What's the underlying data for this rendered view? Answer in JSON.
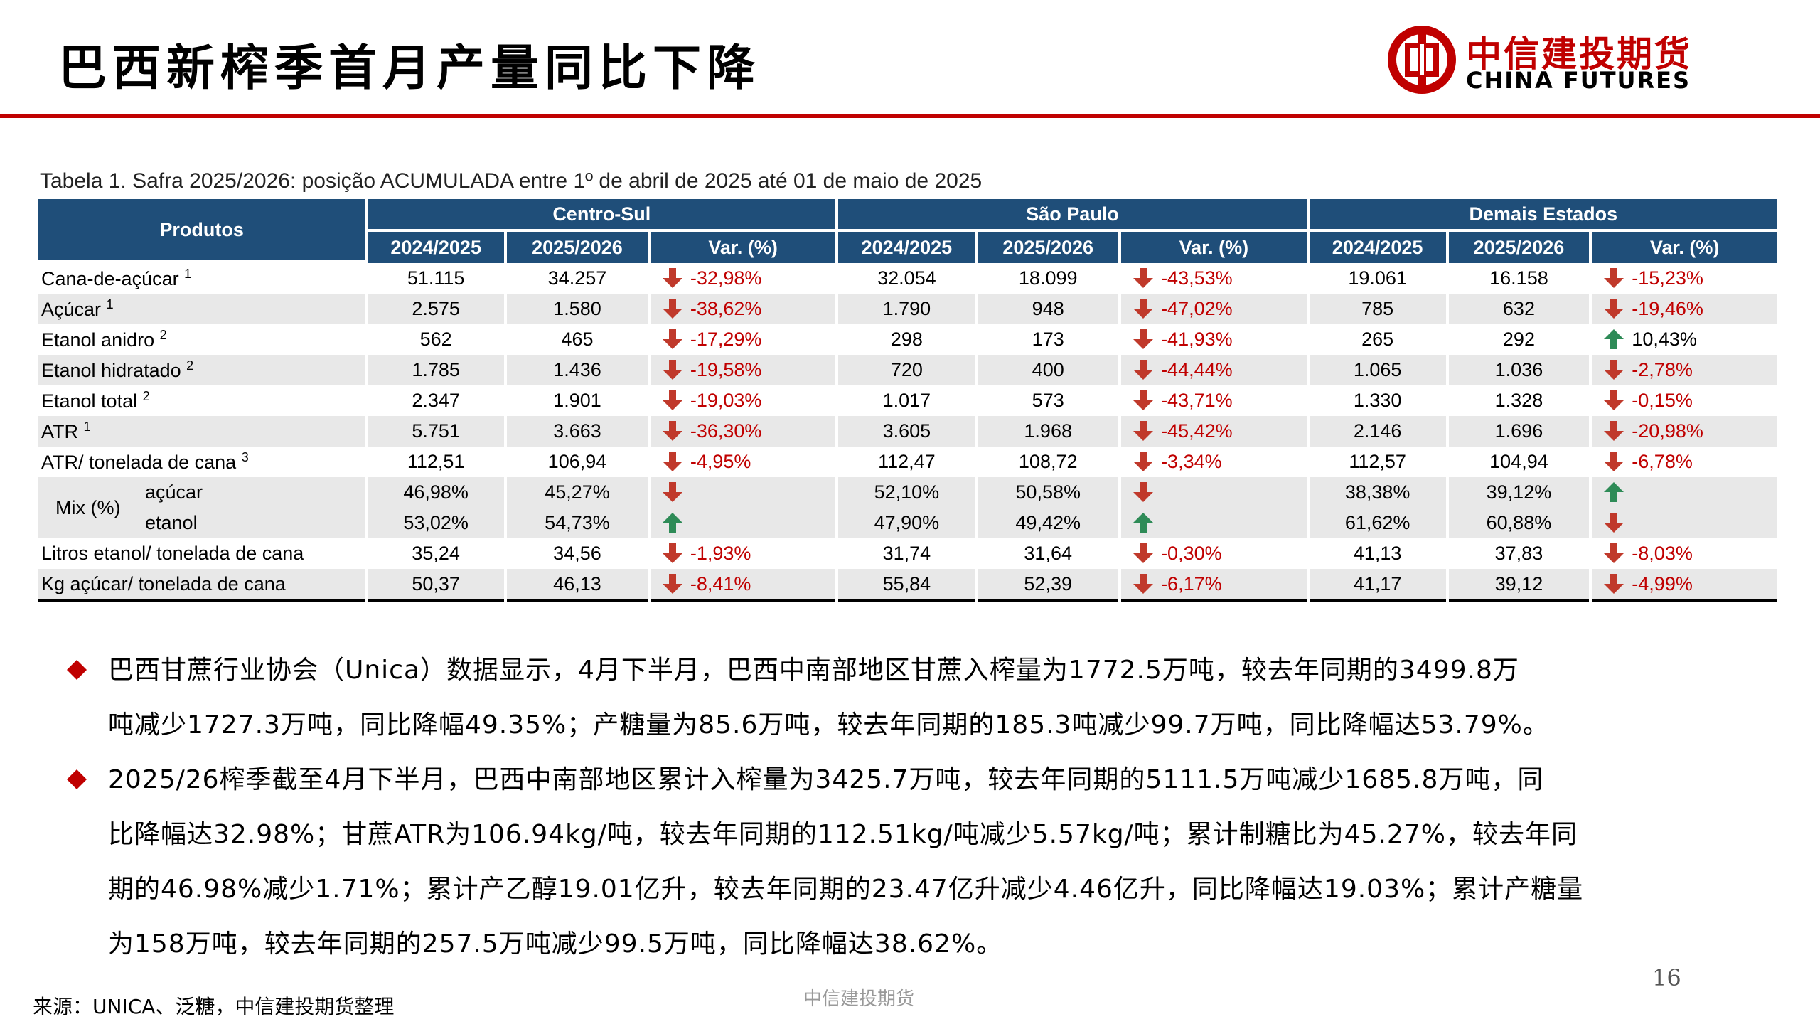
{
  "header": {
    "title": "巴西新榨季首月产量同比下降",
    "logo_cn": "中信建投期货",
    "logo_en": "CHINA FUTURES",
    "logo_color": "#c00000"
  },
  "table": {
    "caption": "Tabela 1. Safra 2025/2026: posição ACUMULADA entre 1º de abril de 2025 até 01 de maio de 2025",
    "products_header": "Produtos",
    "regions": [
      "Centro-Sul",
      "São Paulo",
      "Demais Estados"
    ],
    "subheaders": [
      "2024/2025",
      "2025/2026",
      "Var. (%)"
    ],
    "rows": [
      {
        "label": "Cana-de-açúcar",
        "sup": "1",
        "cells": [
          [
            "51.115",
            "34.257",
            "-32,98%",
            "down"
          ],
          [
            "32.054",
            "18.099",
            "-43,53%",
            "down"
          ],
          [
            "19.061",
            "16.158",
            "-15,23%",
            "down"
          ]
        ]
      },
      {
        "label": "Açúcar",
        "sup": "1",
        "cells": [
          [
            "2.575",
            "1.580",
            "-38,62%",
            "down"
          ],
          [
            "1.790",
            "948",
            "-47,02%",
            "down"
          ],
          [
            "785",
            "632",
            "-19,46%",
            "down"
          ]
        ]
      },
      {
        "label": "Etanol anidro",
        "sup": "2",
        "cells": [
          [
            "562",
            "465",
            "-17,29%",
            "down"
          ],
          [
            "298",
            "173",
            "-41,93%",
            "down"
          ],
          [
            "265",
            "292",
            "10,43%",
            "up"
          ]
        ]
      },
      {
        "label": "Etanol hidratado",
        "sup": "2",
        "cells": [
          [
            "1.785",
            "1.436",
            "-19,58%",
            "down"
          ],
          [
            "720",
            "400",
            "-44,44%",
            "down"
          ],
          [
            "1.065",
            "1.036",
            "-2,78%",
            "down"
          ]
        ]
      },
      {
        "label": "Etanol total",
        "sup": "2",
        "cells": [
          [
            "2.347",
            "1.901",
            "-19,03%",
            "down"
          ],
          [
            "1.017",
            "573",
            "-43,71%",
            "down"
          ],
          [
            "1.330",
            "1.328",
            "-0,15%",
            "down"
          ]
        ]
      },
      {
        "label": "ATR",
        "sup": "1",
        "cells": [
          [
            "5.751",
            "3.663",
            "-36,30%",
            "down"
          ],
          [
            "3.605",
            "1.968",
            "-45,42%",
            "down"
          ],
          [
            "2.146",
            "1.696",
            "-20,98%",
            "down"
          ]
        ]
      },
      {
        "label": "ATR/ tonelada de cana",
        "sup": "3",
        "cells": [
          [
            "112,51",
            "106,94",
            "-4,95%",
            "down"
          ],
          [
            "112,47",
            "108,72",
            "-3,34%",
            "down"
          ],
          [
            "112,57",
            "104,94",
            "-6,78%",
            "down"
          ]
        ]
      }
    ],
    "mix": {
      "label": "Mix (%)",
      "rows": [
        {
          "sub": "açúcar",
          "cells": [
            [
              "46,98%",
              "45,27%",
              "",
              "down"
            ],
            [
              "52,10%",
              "50,58%",
              "",
              "down"
            ],
            [
              "38,38%",
              "39,12%",
              "",
              "up"
            ]
          ]
        },
        {
          "sub": "etanol",
          "cells": [
            [
              "53,02%",
              "54,73%",
              "",
              "up"
            ],
            [
              "47,90%",
              "49,42%",
              "",
              "up"
            ],
            [
              "61,62%",
              "60,88%",
              "",
              "down"
            ]
          ]
        }
      ]
    },
    "tail_rows": [
      {
        "label": "Litros etanol/ tonelada de cana",
        "sup": "",
        "cells": [
          [
            "35,24",
            "34,56",
            "-1,93%",
            "down"
          ],
          [
            "31,74",
            "31,64",
            "-0,30%",
            "down"
          ],
          [
            "41,13",
            "37,83",
            "-8,03%",
            "down"
          ]
        ]
      },
      {
        "label": "Kg açúcar/ tonelada de cana",
        "sup": "",
        "cells": [
          [
            "50,37",
            "46,13",
            "-8,41%",
            "down"
          ],
          [
            "55,84",
            "52,39",
            "-6,17%",
            "down"
          ],
          [
            "41,17",
            "39,12",
            "-4,99%",
            "down"
          ]
        ]
      }
    ],
    "header_color": "#1f4e79",
    "down_color": "#c0392b",
    "up_color": "#2e8b57"
  },
  "bullets": [
    {
      "lines": [
        "巴西甘蔗行业协会（Unica）数据显示，4月下半月，巴西中南部地区甘蔗入榨量为1772.5万吨，较去年同期的3499.8万",
        "吨减少1727.3万吨，同比降幅49.35%；产糖量为85.6万吨，较去年同期的185.3吨减少99.7万吨，同比降幅达53.79%。"
      ]
    },
    {
      "lines": [
        "2025/26榨季截至4月下半月，巴西中南部地区累计入榨量为3425.7万吨，较去年同期的5111.5万吨减少1685.8万吨，同",
        "比降幅达32.98%；甘蔗ATR为106.94kg/吨，较去年同期的112.51kg/吨减少5.57kg/吨；累计制糖比为45.27%，较去年同",
        "期的46.98%减少1.71%；累计产乙醇19.01亿升，较去年同期的23.47亿升减少4.46亿升，同比降幅达19.03%；累计产糖量",
        "为158万吨，较去年同期的257.5万吨减少99.5万吨，同比降幅达38.62%。"
      ]
    }
  ],
  "footer": {
    "page_number": "16",
    "center": "中信建投期货",
    "source": "来源：UNICA、泛糖，中信建投期货整理"
  }
}
